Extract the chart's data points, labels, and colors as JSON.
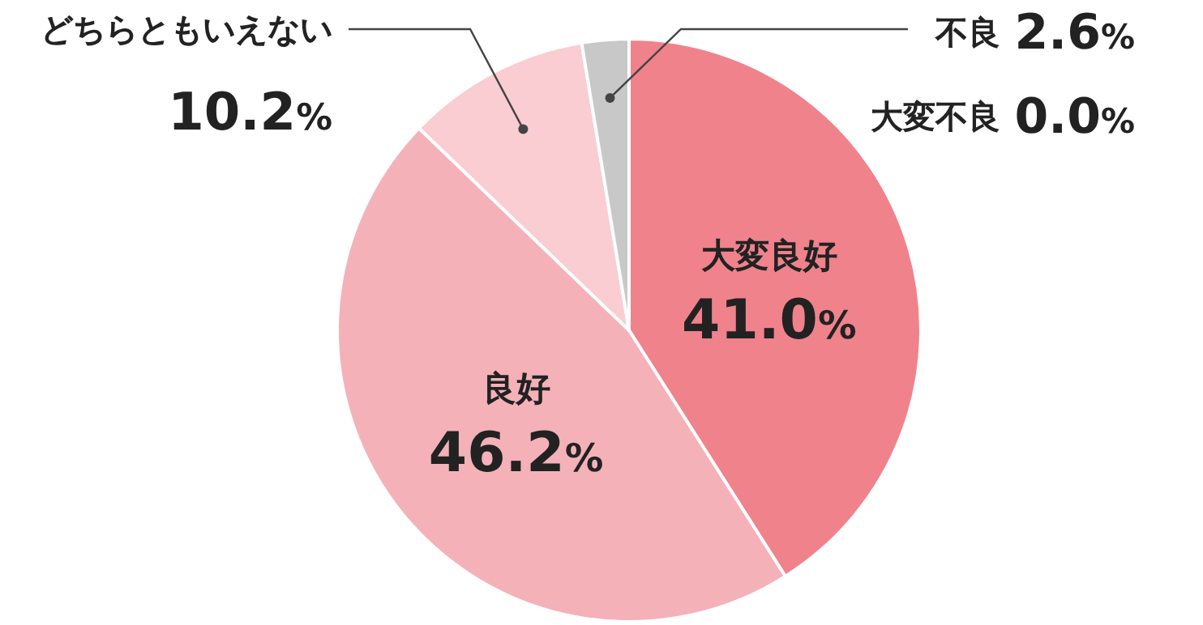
{
  "chart_data": {
    "type": "pie",
    "categories": [
      "大変良好",
      "良好",
      "どちらともいえない",
      "不良",
      "大変不良"
    ],
    "values": [
      41.0,
      46.2,
      10.2,
      2.6,
      0.0
    ],
    "colors": [
      "#f0828c",
      "#f5b1b8",
      "#f9cdd1",
      "#c8c8c8",
      "#b0b0b0"
    ],
    "value_labels": [
      "41.0%",
      "46.2%",
      "10.2%",
      "2.6%",
      "0.0%"
    ]
  }
}
